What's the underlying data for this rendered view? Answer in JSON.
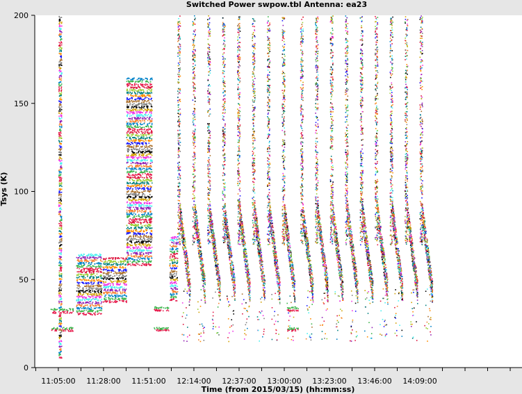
{
  "chart_data": {
    "type": "scatter",
    "title": "Switched Power  swpow.tbl   Antenna: ea23",
    "xlabel": "Time (from 2015/03/15) (hh:mm:ss)",
    "ylabel": "Tsys (K)",
    "ylim": [
      0,
      200
    ],
    "yticks": [
      0,
      50,
      100,
      150,
      200
    ],
    "xticks": [
      "11:05:00",
      "11:28:00",
      "11:51:00",
      "12:14:00",
      "12:37:00",
      "13:00:00",
      "13:23:00",
      "13:46:00",
      "14:09:00"
    ],
    "xlim": [
      "10:53:00",
      "15:01:00"
    ],
    "grid": false,
    "colors": [
      "#e6194b",
      "#3cb44b",
      "#0082c8",
      "#f58231",
      "#911eb4",
      "#46f0f0",
      "#f032e6",
      "#d2a000",
      "#000000",
      "#808080",
      "#aa6e28",
      "#1a1aff",
      "#ff8c00",
      "#008080",
      "#9acd32",
      "#dc143c"
    ],
    "segments": [
      {
        "t": [
          "11:01:00",
          "11:04:30"
        ],
        "tsys": [
          [
            21,
            23
          ],
          [
            31,
            34
          ]
        ]
      },
      {
        "t": [
          "11:05:00",
          "11:06:30"
        ],
        "tsys": [
          [
            5,
            200
          ]
        ]
      },
      {
        "t": [
          "11:06:30",
          "11:12:30"
        ],
        "tsys": [
          [
            21,
            23
          ],
          [
            31,
            34
          ]
        ]
      },
      {
        "t": [
          "11:14:00",
          "11:27:00"
        ],
        "tsys": [
          [
            30,
            65
          ]
        ]
      },
      {
        "t": [
          "11:27:30",
          "11:39:30"
        ],
        "tsys": [
          [
            37,
            63
          ]
        ]
      },
      {
        "t": [
          "11:39:30",
          "11:52:30"
        ],
        "tsys": [
          [
            58,
            165
          ]
        ]
      },
      {
        "t": [
          "11:53:30",
          "12:01:00"
        ],
        "tsys": [
          [
            21,
            23
          ],
          [
            32,
            35
          ]
        ]
      },
      {
        "t": [
          "12:01:30",
          "12:05:30"
        ],
        "tsys": [
          [
            38,
            75
          ]
        ]
      },
      {
        "t": [
          "12:05:30",
          "12:59:30"
        ],
        "tsys": [
          [
            40,
            200
          ]
        ],
        "pattern": "stripes",
        "period_min": 7.6
      },
      {
        "t": [
          "13:01:00",
          "13:07:00"
        ],
        "tsys": [
          [
            21,
            23
          ],
          [
            32,
            35
          ]
        ]
      },
      {
        "t": [
          "13:08:00",
          "14:13:00"
        ],
        "tsys": [
          [
            40,
            200
          ]
        ],
        "pattern": "stripes",
        "period_min": 7.6
      }
    ]
  }
}
